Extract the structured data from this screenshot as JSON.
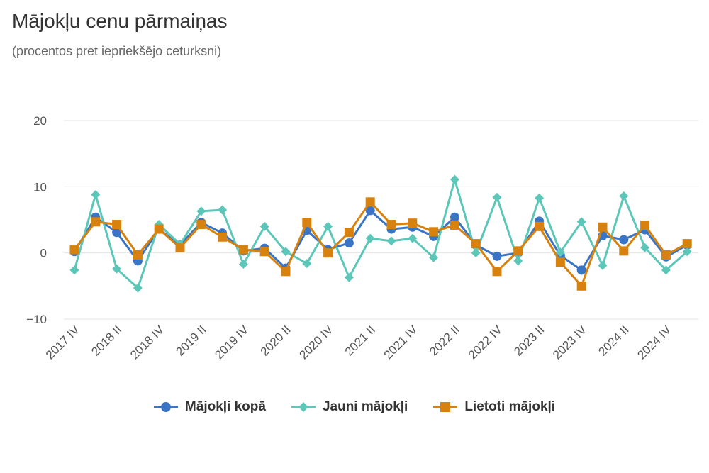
{
  "title": "Mājokļu cenu pārmaiņas",
  "subtitle": "(procentos pret iepriekšējo ceturksni)",
  "colors": {
    "total": "#3a74c4",
    "new": "#5cc7b9",
    "used": "#d7820f",
    "grid": "#e6e6e6",
    "axis_text": "#555555"
  },
  "chart_data": {
    "type": "line",
    "ylim": [
      -10,
      20
    ],
    "yticks": [
      -10,
      0,
      10,
      20
    ],
    "ytick_labels": [
      "−10",
      "0",
      "10",
      "20"
    ],
    "xtick_labels": [
      "2017 IV",
      "2018 II",
      "2018 IV",
      "2019 II",
      "2019 IV",
      "2020 II",
      "2020 IV",
      "2021 II",
      "2021 IV",
      "2022 II",
      "2022 IV",
      "2023 II",
      "2023 IV",
      "2024 II",
      "2024 IV"
    ],
    "xtick_indices": [
      0,
      2,
      4,
      6,
      8,
      10,
      12,
      14,
      16,
      18,
      20,
      22,
      24,
      26,
      28
    ],
    "categories": [
      "2017 IV",
      "2018 I",
      "2018 II",
      "2018 III",
      "2018 IV",
      "2019 I",
      "2019 II",
      "2019 III",
      "2019 IV",
      "2020 I",
      "2020 II",
      "2020 III",
      "2020 IV",
      "2021 I",
      "2021 II",
      "2021 III",
      "2021 IV",
      "2022 I",
      "2022 II",
      "2022 III",
      "2022 IV",
      "2023 I",
      "2023 II",
      "2023 III",
      "2023 IV",
      "2024 I",
      "2024 II",
      "2024 III",
      "2024 IV",
      "2025 I"
    ],
    "grid": true,
    "legend_position": "bottom-center",
    "series": [
      {
        "name": "Mājokļi kopā",
        "key": "total",
        "marker": "circle",
        "values": [
          0.2,
          5.4,
          3.1,
          -1.2,
          3.6,
          1.2,
          4.6,
          3.0,
          0.3,
          0.7,
          -2.3,
          3.4,
          0.5,
          1.5,
          6.4,
          3.6,
          3.9,
          2.5,
          5.4,
          1.2,
          -0.5,
          0.0,
          4.8,
          -0.4,
          -2.6,
          2.6,
          2.0,
          3.5,
          -0.6,
          1.2
        ]
      },
      {
        "name": "Jauni mājokļi",
        "key": "new",
        "marker": "diamond",
        "values": [
          -2.6,
          8.8,
          -2.4,
          -5.3,
          4.3,
          1.3,
          6.3,
          6.5,
          -1.7,
          4.0,
          0.2,
          -1.6,
          4.0,
          -3.7,
          2.2,
          1.8,
          2.2,
          -0.7,
          11.1,
          0.0,
          8.4,
          -1.2,
          8.3,
          0.1,
          4.7,
          -1.9,
          8.6,
          0.8,
          -2.6,
          0.2
        ]
      },
      {
        "name": "Lietoti mājokļi",
        "key": "used",
        "marker": "square",
        "values": [
          0.5,
          4.7,
          4.3,
          -0.3,
          3.6,
          0.8,
          4.3,
          2.4,
          0.5,
          0.2,
          -2.8,
          4.6,
          0.0,
          3.1,
          7.7,
          4.3,
          4.5,
          3.2,
          4.2,
          1.4,
          -2.8,
          0.3,
          4.0,
          -1.4,
          -5.0,
          3.9,
          0.3,
          4.2,
          -0.3,
          1.4
        ]
      }
    ]
  }
}
